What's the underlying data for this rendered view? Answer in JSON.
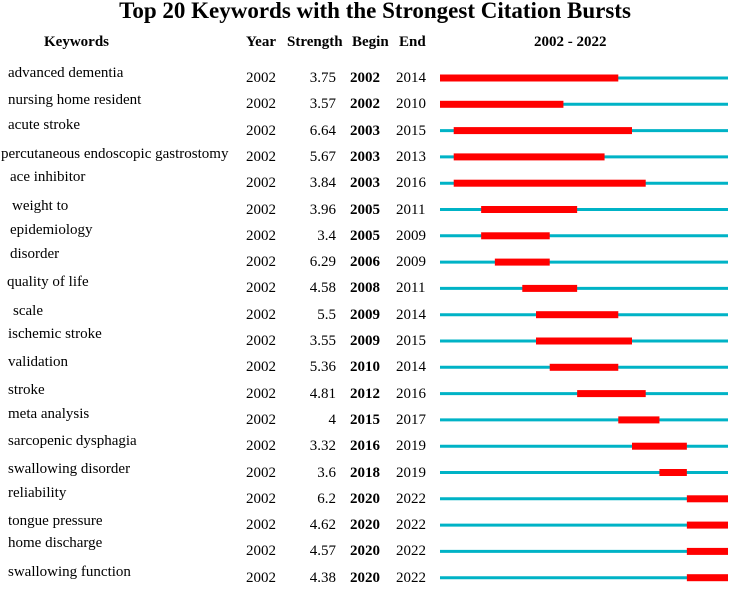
{
  "chart_data": {
    "type": "table",
    "title": "Top 20 Keywords with the Strongest Citation Bursts",
    "columns": [
      "Keywords",
      "Year",
      "Strength",
      "Begin",
      "End",
      "2002 - 2022"
    ],
    "range": [
      2002,
      2022
    ],
    "colors": {
      "burst": "#ff0000",
      "baseline": "#00b3c6"
    },
    "rows": [
      {
        "keyword": "advanced dementia",
        "year": "2002",
        "strength": "3.75",
        "begin": "2002",
        "end": "2014"
      },
      {
        "keyword": "nursing home resident",
        "year": "2002",
        "strength": "3.57",
        "begin": "2002",
        "end": "2010"
      },
      {
        "keyword": "acute stroke",
        "year": "2002",
        "strength": "6.64",
        "begin": "2003",
        "end": "2015"
      },
      {
        "keyword": "percutaneous endoscopic gastrostomy",
        "year": "2002",
        "strength": "5.67",
        "begin": "2003",
        "end": "2013"
      },
      {
        "keyword": "ace inhibitor",
        "year": "2002",
        "strength": "3.84",
        "begin": "2003",
        "end": "2016"
      },
      {
        "keyword": "weight to",
        "year": "2002",
        "strength": "3.96",
        "begin": "2005",
        "end": "2011"
      },
      {
        "keyword": "epidemiology",
        "year": "2002",
        "strength": "3.4",
        "begin": "2005",
        "end": "2009"
      },
      {
        "keyword": "disorder",
        "year": "2002",
        "strength": "6.29",
        "begin": "2006",
        "end": "2009"
      },
      {
        "keyword": "quality of life",
        "year": "2002",
        "strength": "4.58",
        "begin": "2008",
        "end": "2011"
      },
      {
        "keyword": "scale",
        "year": "2002",
        "strength": "5.5",
        "begin": "2009",
        "end": "2014"
      },
      {
        "keyword": "ischemic stroke",
        "year": "2002",
        "strength": "3.55",
        "begin": "2009",
        "end": "2015"
      },
      {
        "keyword": "validation",
        "year": "2002",
        "strength": "5.36",
        "begin": "2010",
        "end": "2014"
      },
      {
        "keyword": "stroke",
        "year": "2002",
        "strength": "4.81",
        "begin": "2012",
        "end": "2016"
      },
      {
        "keyword": "meta analysis",
        "year": "2002",
        "strength": "4",
        "begin": "2015",
        "end": "2017"
      },
      {
        "keyword": "sarcopenic dysphagia",
        "year": "2002",
        "strength": "3.32",
        "begin": "2016",
        "end": "2019"
      },
      {
        "keyword": "swallowing disorder",
        "year": "2002",
        "strength": "3.6",
        "begin": "2018",
        "end": "2019"
      },
      {
        "keyword": "reliability",
        "year": "2002",
        "strength": "6.2",
        "begin": "2020",
        "end": "2022"
      },
      {
        "keyword": "tongue pressure",
        "year": "2002",
        "strength": "4.62",
        "begin": "2020",
        "end": "2022"
      },
      {
        "keyword": "home discharge",
        "year": "2002",
        "strength": "4.57",
        "begin": "2020",
        "end": "2022"
      },
      {
        "keyword": "swallowing function",
        "year": "2002",
        "strength": "4.38",
        "begin": "2020",
        "end": "2022"
      }
    ]
  }
}
